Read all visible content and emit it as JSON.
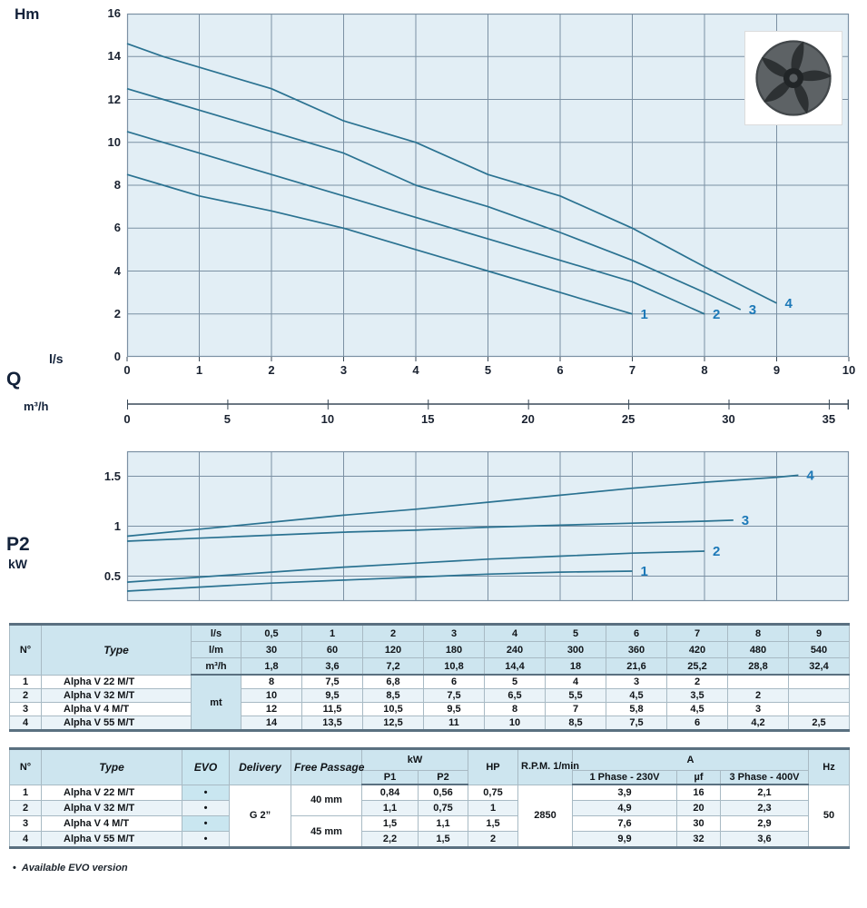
{
  "chart_data": [
    {
      "id": "head_capacity_chart",
      "type": "line",
      "ylabel": "Hm",
      "xlabel": "l/s",
      "xlim": [
        0,
        10
      ],
      "ylim": [
        0,
        16
      ],
      "x_ticks": [
        0,
        1,
        2,
        3,
        4,
        5,
        6,
        7,
        8,
        9,
        10
      ],
      "y_ticks": [
        0,
        2,
        4,
        6,
        8,
        10,
        12,
        14,
        16
      ],
      "grid_x": [
        1,
        2,
        3,
        4,
        5,
        6,
        7,
        8,
        9
      ],
      "grid_y": [
        2,
        4,
        6,
        8,
        10,
        12,
        14
      ],
      "series": [
        {
          "name": "1",
          "points": [
            [
              0,
              8.5
            ],
            [
              0.5,
              8
            ],
            [
              1,
              7.5
            ],
            [
              1.5,
              7.15
            ],
            [
              2,
              6.8
            ],
            [
              3,
              6
            ],
            [
              4,
              5
            ],
            [
              5,
              4
            ],
            [
              6,
              3
            ],
            [
              7,
              2
            ]
          ]
        },
        {
          "name": "2",
          "points": [
            [
              0,
              10.5
            ],
            [
              0.5,
              10
            ],
            [
              1,
              9.5
            ],
            [
              2,
              8.5
            ],
            [
              3,
              7.5
            ],
            [
              4,
              6.5
            ],
            [
              5,
              5.5
            ],
            [
              6,
              4.5
            ],
            [
              7,
              3.5
            ],
            [
              8,
              2
            ]
          ]
        },
        {
          "name": "3",
          "points": [
            [
              0,
              12.5
            ],
            [
              0.5,
              12
            ],
            [
              1,
              11.5
            ],
            [
              2,
              10.5
            ],
            [
              3,
              9.5
            ],
            [
              4,
              8
            ],
            [
              5,
              7
            ],
            [
              6,
              5.8
            ],
            [
              7,
              4.5
            ],
            [
              8,
              3
            ],
            [
              8.5,
              2.2
            ]
          ]
        },
        {
          "name": "4",
          "points": [
            [
              0,
              14.6
            ],
            [
              0.5,
              14
            ],
            [
              1,
              13.5
            ],
            [
              2,
              12.5
            ],
            [
              3,
              11
            ],
            [
              4,
              10
            ],
            [
              5,
              8.5
            ],
            [
              6,
              7.5
            ],
            [
              7,
              6
            ],
            [
              8,
              4.2
            ],
            [
              9,
              2.5
            ]
          ]
        }
      ]
    },
    {
      "id": "flow_m3h_axis",
      "type": "axis",
      "axis_title": "Q",
      "label": "m³/h",
      "ticks": [
        0,
        5,
        10,
        15,
        20,
        25,
        30,
        35
      ],
      "max": 36
    },
    {
      "id": "power_p2_chart",
      "type": "line",
      "ylabel": "P2",
      "ylabel_unit": "kW",
      "xlim": [
        0,
        10
      ],
      "ylim": [
        0.25,
        1.75
      ],
      "x_ticks": [],
      "y_ticks": [
        0.5,
        1,
        1.5
      ],
      "grid_x": [
        1,
        2,
        3,
        4,
        5,
        6,
        7,
        8,
        9
      ],
      "grid_y": [
        0.5,
        1,
        1.5
      ],
      "series": [
        {
          "name": "1",
          "points": [
            [
              0,
              0.35
            ],
            [
              1,
              0.39
            ],
            [
              2,
              0.43
            ],
            [
              3,
              0.46
            ],
            [
              4,
              0.49
            ],
            [
              5,
              0.52
            ],
            [
              6,
              0.54
            ],
            [
              7,
              0.55
            ]
          ]
        },
        {
          "name": "2",
          "points": [
            [
              0,
              0.44
            ],
            [
              1,
              0.49
            ],
            [
              2,
              0.54
            ],
            [
              3,
              0.59
            ],
            [
              4,
              0.63
            ],
            [
              5,
              0.67
            ],
            [
              6,
              0.7
            ],
            [
              7,
              0.73
            ],
            [
              8,
              0.75
            ]
          ]
        },
        {
          "name": "3",
          "points": [
            [
              0,
              0.85
            ],
            [
              1,
              0.88
            ],
            [
              2,
              0.91
            ],
            [
              3,
              0.94
            ],
            [
              4,
              0.96
            ],
            [
              5,
              0.99
            ],
            [
              6,
              1.01
            ],
            [
              7,
              1.03
            ],
            [
              8,
              1.05
            ],
            [
              8.4,
              1.06
            ]
          ]
        },
        {
          "name": "4",
          "points": [
            [
              0,
              0.9
            ],
            [
              1,
              0.97
            ],
            [
              2,
              1.04
            ],
            [
              3,
              1.11
            ],
            [
              4,
              1.17
            ],
            [
              5,
              1.24
            ],
            [
              6,
              1.31
            ],
            [
              7,
              1.38
            ],
            [
              8,
              1.44
            ],
            [
              9,
              1.49
            ],
            [
              9.3,
              1.51
            ]
          ]
        }
      ]
    }
  ],
  "table1": {
    "header": {
      "no": "N°",
      "type": "Type",
      "units": [
        "l/s",
        "l/m",
        "m³/h"
      ],
      "flow_ls": [
        "0,5",
        "1",
        "2",
        "3",
        "4",
        "5",
        "6",
        "7",
        "8",
        "9"
      ],
      "flow_lm": [
        "30",
        "60",
        "120",
        "180",
        "240",
        "300",
        "360",
        "420",
        "480",
        "540"
      ],
      "flow_m3h": [
        "1,8",
        "3,6",
        "7,2",
        "10,8",
        "14,4",
        "18",
        "21,6",
        "25,2",
        "28,8",
        "32,4"
      ]
    },
    "body_unit": "mt",
    "rows": [
      {
        "no": "1",
        "type": "Alpha V 22 M/T",
        "values": [
          "8",
          "7,5",
          "6,8",
          "6",
          "5",
          "4",
          "3",
          "2",
          "",
          ""
        ]
      },
      {
        "no": "2",
        "type": "Alpha V 32 M/T",
        "values": [
          "10",
          "9,5",
          "8,5",
          "7,5",
          "6,5",
          "5,5",
          "4,5",
          "3,5",
          "2",
          ""
        ]
      },
      {
        "no": "3",
        "type": "Alpha V 4 M/T",
        "values": [
          "12",
          "11,5",
          "10,5",
          "9,5",
          "8",
          "7",
          "5,8",
          "4,5",
          "3",
          ""
        ]
      },
      {
        "no": "4",
        "type": "Alpha V 55 M/T",
        "values": [
          "14",
          "13,5",
          "12,5",
          "11",
          "10",
          "8,5",
          "7,5",
          "6",
          "4,2",
          "2,5"
        ]
      }
    ]
  },
  "table2": {
    "header": {
      "no": "N°",
      "type": "Type",
      "evo": "EVO",
      "delivery": "Delivery",
      "free_passage": "Free Passage",
      "kw": "kW",
      "p1": "P1",
      "p2": "P2",
      "hp": "HP",
      "rpm": "R.P.M.\n1/min",
      "a": "A",
      "phase1": "1 Phase - 230V",
      "uf": "µf",
      "phase3": "3 Phase - 400V",
      "hz": "Hz"
    },
    "shared": {
      "delivery": "G 2”",
      "free_passage_12": "40 mm",
      "free_passage_34": "45 mm",
      "rpm": "2850",
      "hz": "50"
    },
    "rows": [
      {
        "no": "1",
        "type": "Alpha V 22 M/T",
        "evo": "•",
        "p1": "0,84",
        "p2": "0,56",
        "hp": "0,75",
        "a1": "3,9",
        "uf": "16",
        "a3": "2,1"
      },
      {
        "no": "2",
        "type": "Alpha V 32 M/T",
        "evo": "•",
        "p1": "1,1",
        "p2": "0,75",
        "hp": "1",
        "a1": "4,9",
        "uf": "20",
        "a3": "2,3"
      },
      {
        "no": "3",
        "type": "Alpha V 4 M/T",
        "evo": "•",
        "p1": "1,5",
        "p2": "1,1",
        "hp": "1,5",
        "a1": "7,6",
        "uf": "30",
        "a3": "2,9"
      },
      {
        "no": "4",
        "type": "Alpha V 55 M/T",
        "evo": "•",
        "p1": "2,2",
        "p2": "1,5",
        "hp": "2",
        "a1": "9,9",
        "uf": "32",
        "a3": "3,6"
      }
    ]
  },
  "footnote": {
    "bullet": "•",
    "text": "Available EVO version"
  },
  "colors": {
    "chart_bg": "#e2eef5",
    "grid": "#7b90a3",
    "curve": "#2a7291",
    "curve_label": "#1d79b8",
    "header_bg": "#cde5ef",
    "stripe": "#eaf3f8",
    "evo_bg": "#c9e6f0",
    "border_heavy": "#5a7080"
  }
}
